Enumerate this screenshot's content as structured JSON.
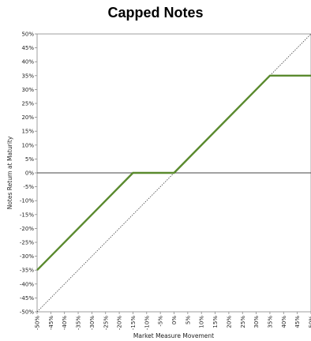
{
  "chart_data": {
    "type": "line",
    "title": "Capped Notes",
    "xlabel": "Market Measure Movement",
    "ylabel": "Notes Return at Maturity",
    "xlim": [
      -50,
      50
    ],
    "ylim": [
      -50,
      50
    ],
    "x_ticks": [
      "-50%",
      "-45%",
      "-40%",
      "-35%",
      "-30%",
      "-25%",
      "-20%",
      "-15%",
      "-10%",
      "-5%",
      "0%",
      "5%",
      "10%",
      "15%",
      "20%",
      "25%",
      "30%",
      "35%",
      "40%",
      "45%",
      "50%"
    ],
    "y_ticks": [
      "50%",
      "45%",
      "40%",
      "35%",
      "30%",
      "25%",
      "20%",
      "15%",
      "10%",
      "5%",
      "0%",
      "-5%",
      "-10%",
      "-15%",
      "-20%",
      "-25%",
      "-30%",
      "-35%",
      "-40%",
      "-45%",
      "-50%"
    ],
    "series": [
      {
        "style": "solid",
        "color": "#5a8a2e",
        "x": [
          -50,
          -15,
          0,
          35,
          50
        ],
        "y": [
          -35,
          0,
          0,
          35,
          35
        ]
      },
      {
        "style": "dotted",
        "color": "#444444",
        "x": [
          -50,
          50
        ],
        "y": [
          -50,
          50
        ]
      }
    ],
    "grid": false,
    "zero_line": true
  }
}
